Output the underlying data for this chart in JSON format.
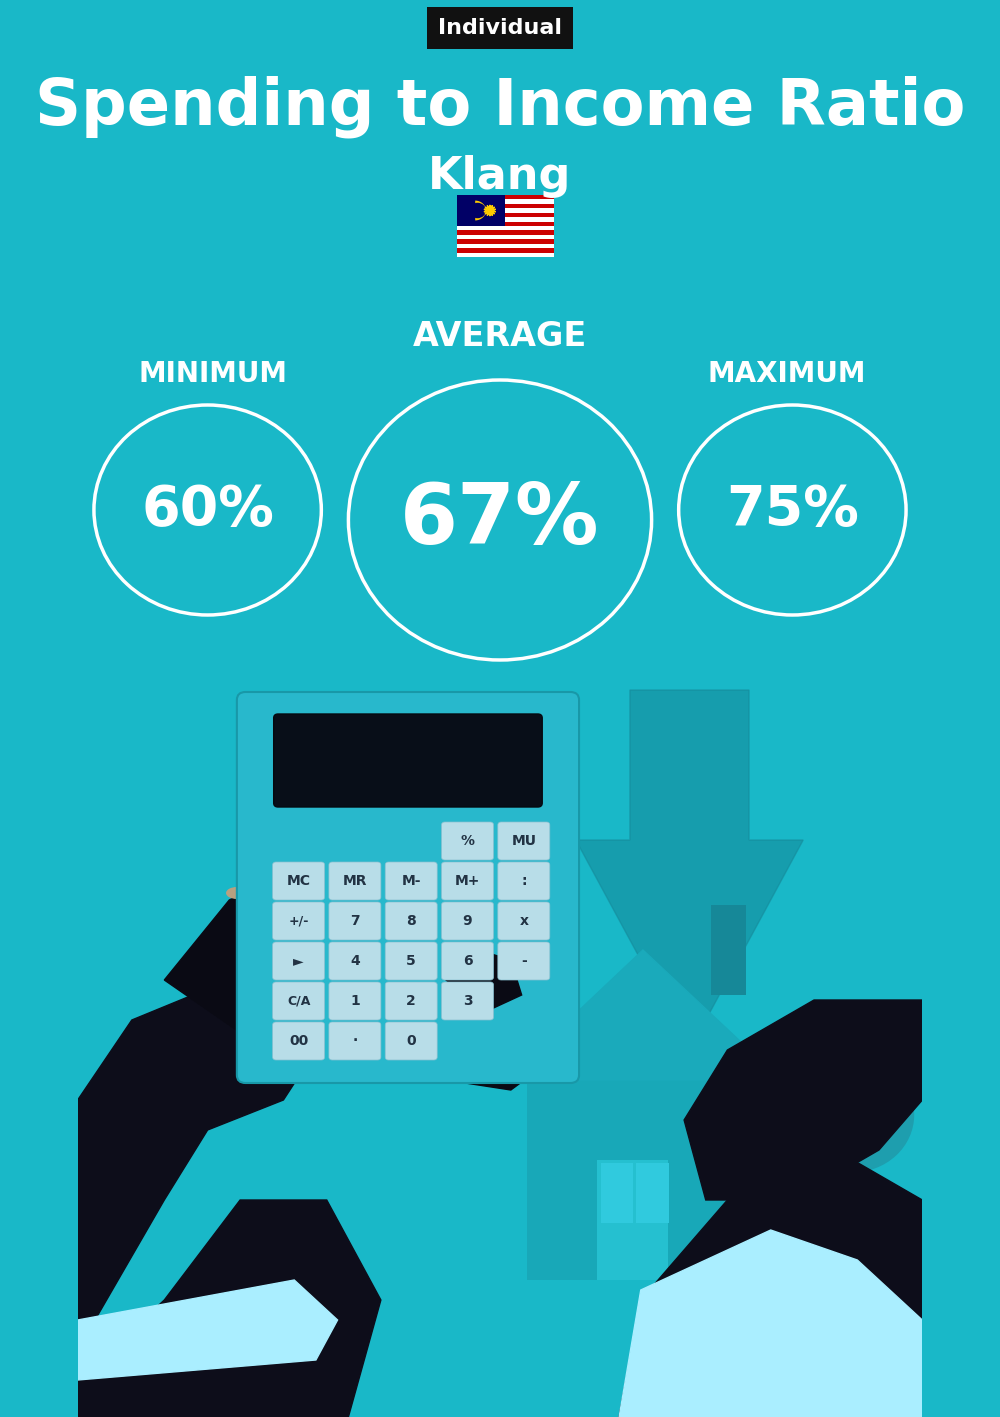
{
  "bg_color": "#19B8C8",
  "title": "Spending to Income Ratio",
  "subtitle": "Klang",
  "tag_text": "Individual",
  "tag_bg": "#111111",
  "tag_text_color": "#ffffff",
  "title_color": "#ffffff",
  "subtitle_color": "#ffffff",
  "min_label": "MINIMUM",
  "avg_label": "AVERAGE",
  "max_label": "MAXIMUM",
  "min_value": "60%",
  "avg_value": "67%",
  "max_value": "75%",
  "circle_color": "#ffffff",
  "value_color": "#ffffff",
  "label_color": "#ffffff",
  "circle_lw": 2.5,
  "figsize": [
    10.0,
    14.17
  ],
  "dpi": 100,
  "hand_dark": "#0A0A14",
  "sleeve_dark": "#0D0D1A",
  "cuff_light": "#AAEEFF",
  "calc_teal": "#28B8CC",
  "calc_screen": "#080E18",
  "btn_color": "#B8DDE8",
  "arrow_teal": "#15A0AF",
  "house_teal": "#18A8B8",
  "money_teal": "#25B0C0",
  "title_fontsize": 46,
  "subtitle_fontsize": 32,
  "tag_fontsize": 16,
  "avg_label_fontsize": 24,
  "minmax_label_fontsize": 20,
  "avg_value_fontsize": 60,
  "minmax_value_fontsize": 40
}
